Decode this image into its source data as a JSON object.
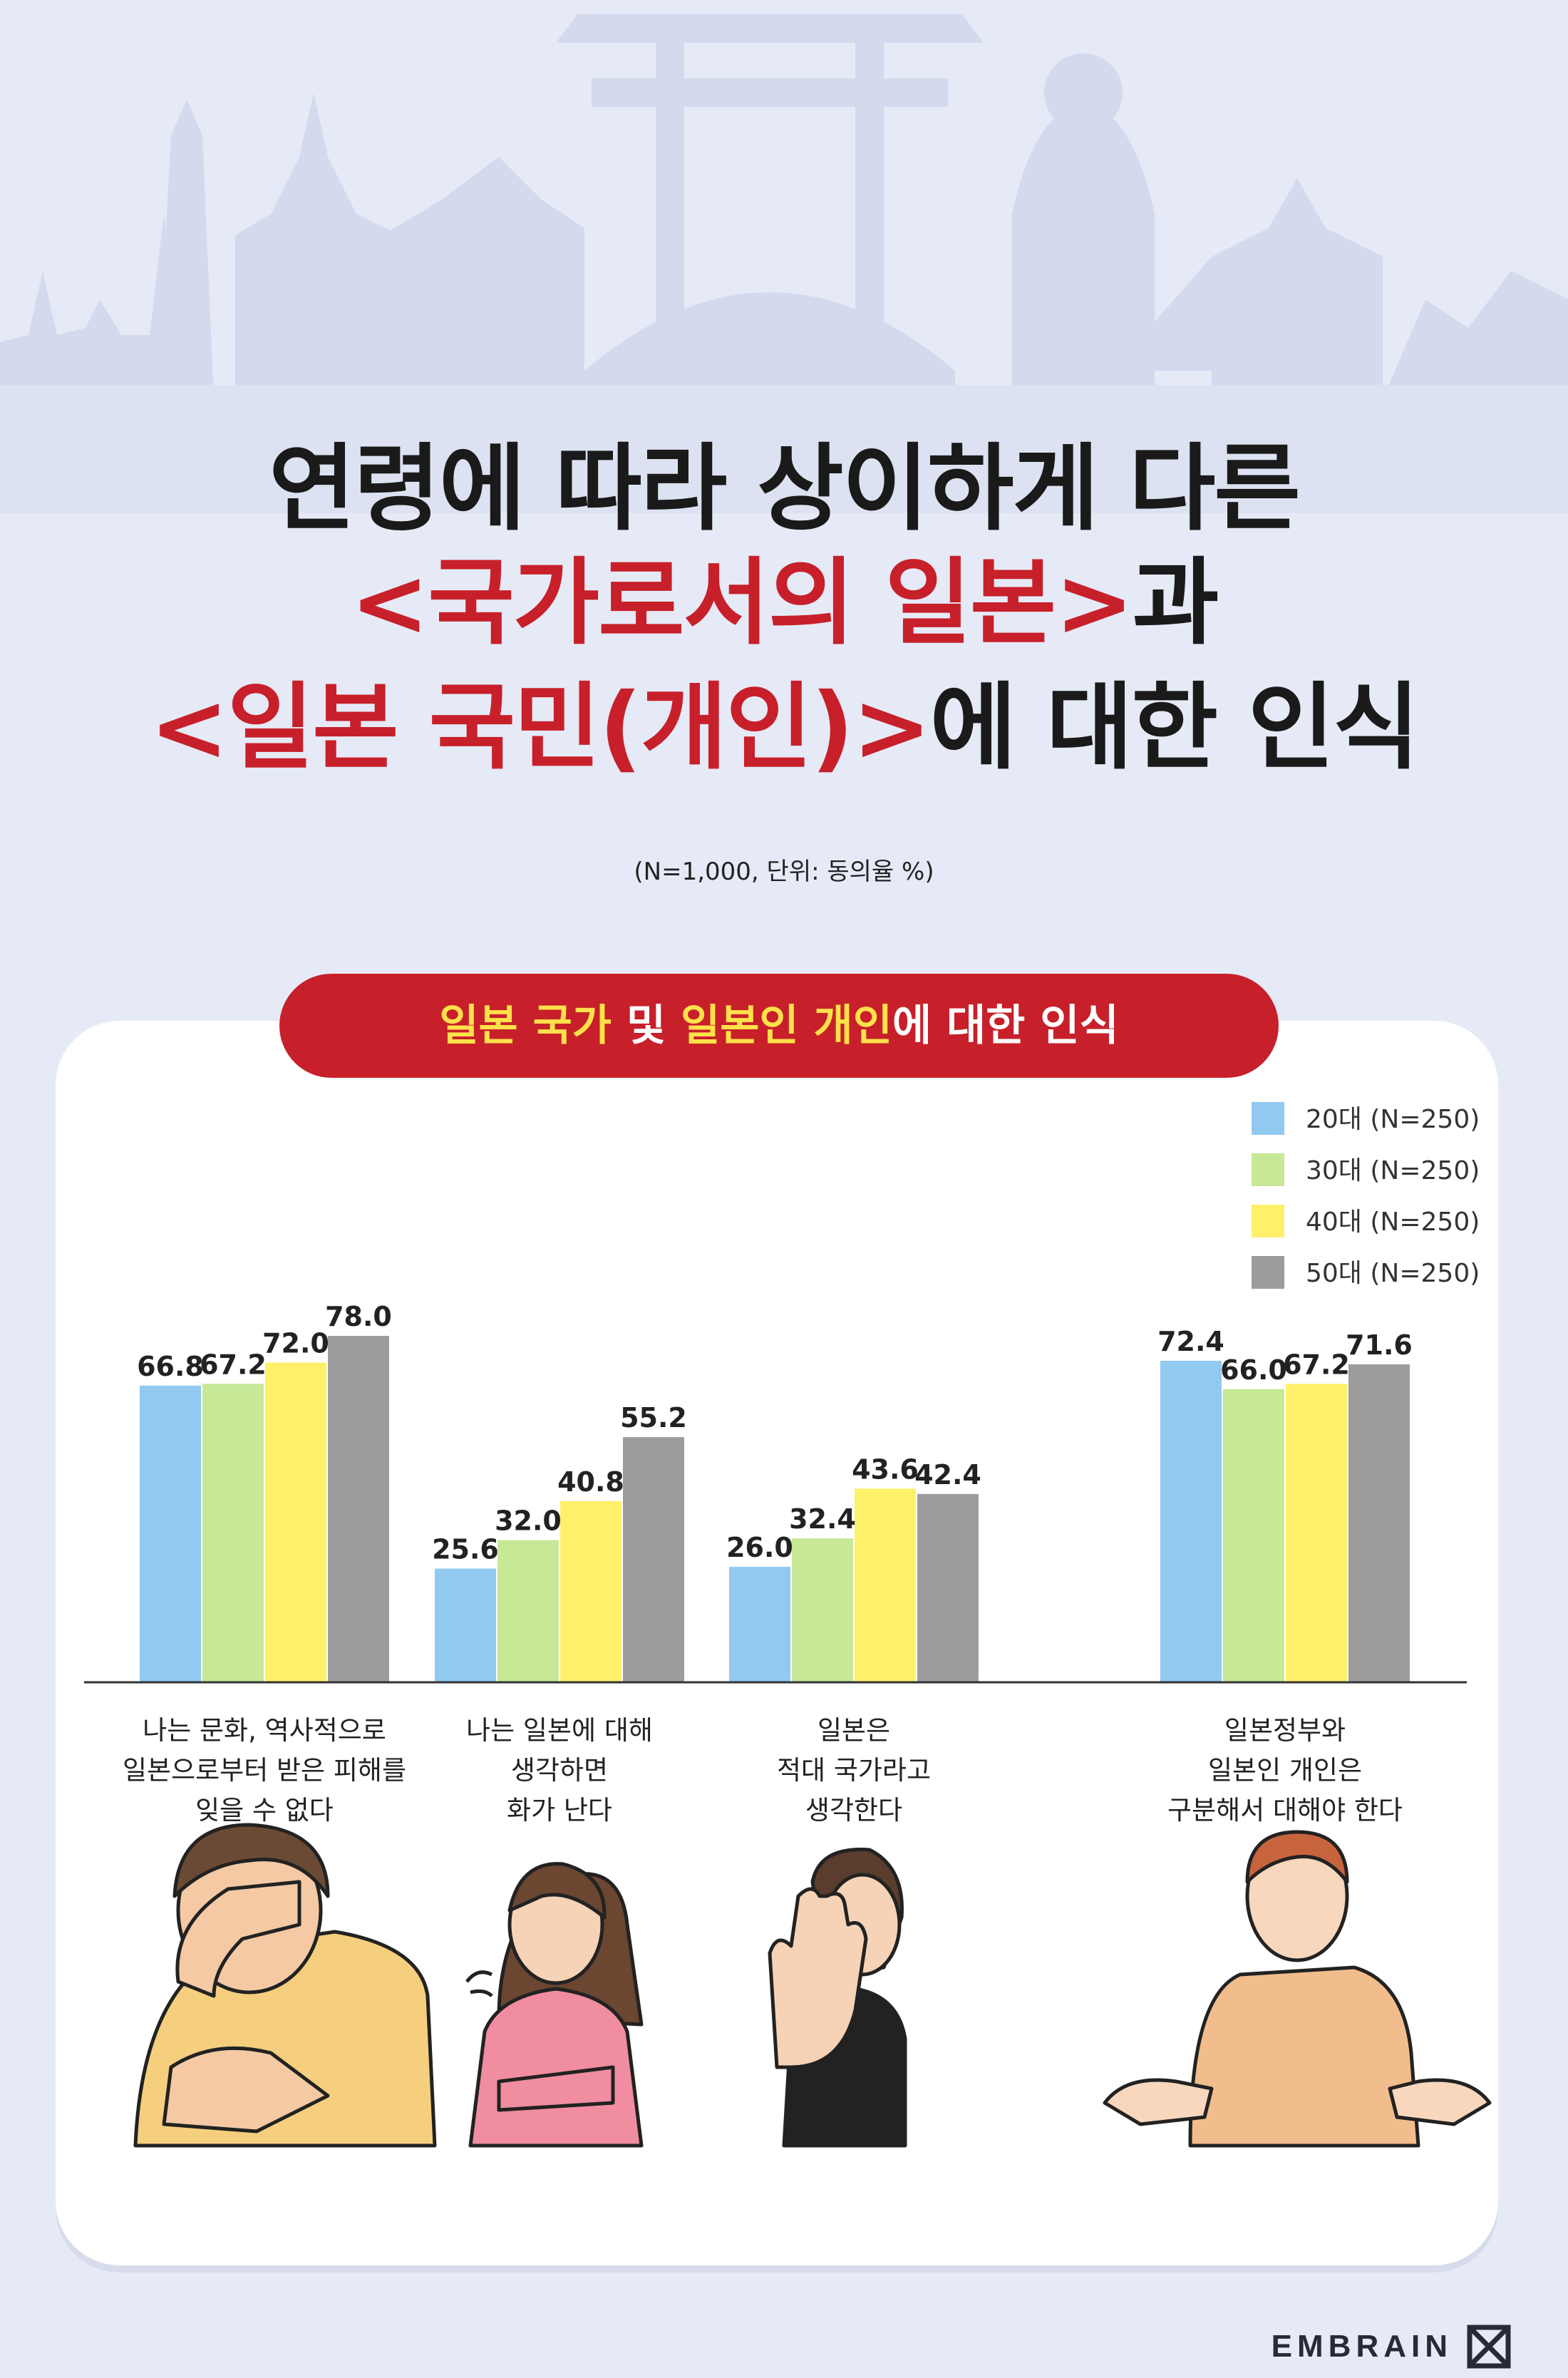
{
  "headline": {
    "line1": "연령에 따라 상이하게 다른",
    "line2_red": "<국가로서의 일본>",
    "line2_black": "과",
    "line3_red": "<일본 국민(개인)>",
    "line3_black": "에 대한 인식"
  },
  "note": "(N=1,000, 단위: 동의율 %)",
  "banner": {
    "part1_yellow": "일본 국가",
    "part2": " 및 ",
    "part3_yellow": "일본인 개인",
    "part4": "에 대한 인식"
  },
  "chart_data": {
    "type": "bar",
    "unit": "%",
    "categories": [
      [
        "나는 문화, 역사적으로",
        "일본으로부터 받은 피해를",
        "잊을 수 없다"
      ],
      [
        "나는 일본에 대해",
        "생각하면",
        "화가 난다"
      ],
      [
        "일본은",
        "적대 국가라고",
        "생각한다"
      ],
      [
        "일본정부와",
        "일본인 개인은",
        "구분해서 대해야 한다"
      ]
    ],
    "series": [
      {
        "name": "20대 (N=250)",
        "color": "#92c9f1",
        "values": [
          66.8,
          25.6,
          26.0,
          72.4
        ]
      },
      {
        "name": "30대 (N=250)",
        "color": "#c6e897",
        "values": [
          67.2,
          32.0,
          32.4,
          66.0
        ]
      },
      {
        "name": "40대 (N=250)",
        "color": "#fff06a",
        "values": [
          72.0,
          40.8,
          43.6,
          67.2
        ]
      },
      {
        "name": "50대 (N=250)",
        "color": "#9c9c9c",
        "values": [
          78.0,
          55.2,
          42.4,
          71.6
        ]
      }
    ],
    "legend_position": "top-right",
    "grid": false
  },
  "colors": {
    "accent_red": "#c7202a",
    "accent_yellow": "#ffe14a",
    "background": "#e6eaf6",
    "skyline": "#d3daee"
  },
  "illustrations": [
    {
      "name": "man-facepalm-illustration"
    },
    {
      "name": "angry-woman-illustration"
    },
    {
      "name": "woman-stop-hand-illustration"
    },
    {
      "name": "man-shrugging-illustration"
    }
  ],
  "logo": {
    "text": "EMBRAIN",
    "icon": "embrain-logo-icon"
  }
}
